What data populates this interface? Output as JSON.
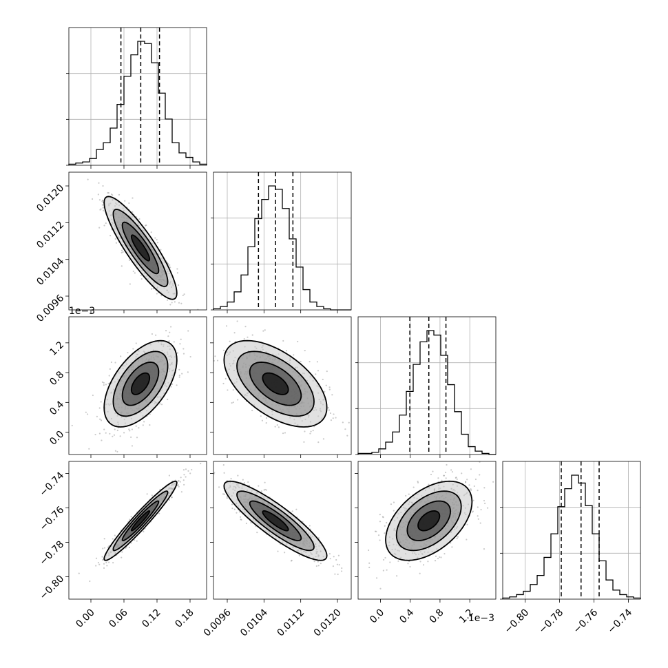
{
  "chart_data": {
    "type": "corner",
    "n_params": 4,
    "colors": {
      "contour": "#000000",
      "quantile_line": "#000000",
      "grid": "#b0b0b0",
      "scatter": "#8a8a8a",
      "hist_step": "#000000"
    },
    "quantile_style": "dashed",
    "grid": true,
    "params": [
      {
        "range": [
          -0.04,
          0.21
        ],
        "ticks": [
          0.0,
          0.06,
          0.12,
          0.18
        ],
        "tick_labels": [
          "0.00",
          "0.06",
          "0.12",
          "0.18"
        ],
        "quantiles": [
          0.0545,
          0.0905,
          0.1245
        ],
        "hist_counts": [
          1,
          2,
          3,
          6,
          14,
          20,
          33,
          54,
          79,
          98,
          110,
          108,
          91,
          64,
          41,
          20,
          11,
          7,
          3,
          1
        ],
        "offset_label": ""
      },
      {
        "range": [
          0.0093,
          0.0123
        ],
        "ticks": [
          0.0096,
          0.0104,
          0.0112,
          0.012
        ],
        "tick_labels": [
          "0.0096",
          "0.0104",
          "0.0112",
          "0.0120"
        ],
        "quantiles": [
          0.01028,
          0.01065,
          0.01103
        ],
        "hist_counts": [
          1,
          3,
          7,
          16,
          31,
          56,
          81,
          98,
          110,
          107,
          90,
          63,
          38,
          18,
          7,
          3,
          1,
          0,
          0,
          0
        ],
        "offset_label": ""
      },
      {
        "range": [
          -0.3,
          1.55
        ],
        "ticks": [
          0.0,
          0.4,
          0.8,
          1.2
        ],
        "tick_labels": [
          "0.0",
          "0.4",
          "0.8",
          "1.2"
        ],
        "quantiles": [
          0.395,
          0.65,
          0.88
        ],
        "hist_counts": [
          1,
          1,
          2,
          5,
          11,
          20,
          35,
          56,
          80,
          100,
          110,
          106,
          88,
          62,
          38,
          18,
          7,
          3,
          1,
          0
        ],
        "offset_label": "1e−3"
      },
      {
        "range": [
          -0.813,
          -0.733
        ],
        "ticks": [
          -0.8,
          -0.78,
          -0.76,
          -0.74
        ],
        "tick_labels": [
          "−0.80",
          "−0.78",
          "−0.76",
          "−0.74"
        ],
        "quantiles": [
          -0.779,
          -0.7675,
          -0.757
        ],
        "hist_counts": [
          1,
          2,
          4,
          7,
          13,
          21,
          37,
          58,
          82,
          98,
          110,
          103,
          83,
          58,
          34,
          17,
          8,
          4,
          2,
          1
        ],
        "offset_label": ""
      }
    ],
    "pairs": [
      {
        "row": 1,
        "col": 0,
        "mean": [
          0.09,
          0.01065
        ],
        "sd": [
          0.033,
          0.00056
        ],
        "corr": -0.88
      },
      {
        "row": 2,
        "col": 0,
        "mean": [
          0.09,
          0.65
        ],
        "sd": [
          0.033,
          0.29
        ],
        "corr": 0.55
      },
      {
        "row": 2,
        "col": 1,
        "mean": [
          0.01065,
          0.65
        ],
        "sd": [
          0.00056,
          0.29
        ],
        "corr": -0.55
      },
      {
        "row": 3,
        "col": 0,
        "mean": [
          0.09,
          -0.7675
        ],
        "sd": [
          0.033,
          0.0115
        ],
        "corr": 0.96
      },
      {
        "row": 3,
        "col": 1,
        "mean": [
          0.01065,
          -0.7675
        ],
        "sd": [
          0.00056,
          0.0115
        ],
        "corr": -0.88
      },
      {
        "row": 3,
        "col": 2,
        "mean": [
          0.65,
          -0.7675
        ],
        "sd": [
          0.29,
          0.0115
        ],
        "corr": 0.48
      }
    ],
    "contour_levels_sigma": [
      0.5,
      1.0,
      1.5,
      2.0
    ]
  }
}
